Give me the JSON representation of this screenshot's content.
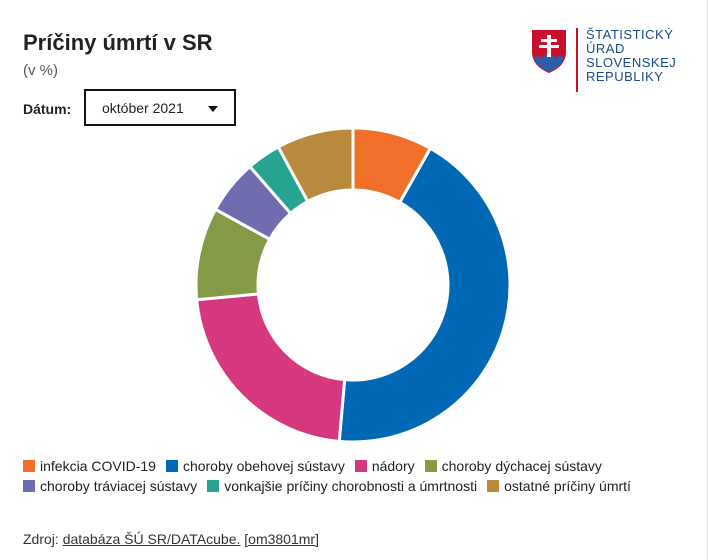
{
  "header": {
    "title": "Príčiny úmrtí v SR",
    "subtitle": "(v %)"
  },
  "filter": {
    "label": "Dátum:",
    "selected": "október 2021"
  },
  "logo": {
    "lines": [
      "ŠTATISTICKÝ",
      "ÚRAD",
      "SLOVENSKEJ",
      "REPUBLIKY"
    ]
  },
  "chart_data": {
    "type": "pie",
    "donut": true,
    "title": "Príčiny úmrtí v SR",
    "subtitle": "(v %)",
    "legend_position": "bottom",
    "categories": [
      "infekcia COVID-19",
      "choroby obehovej sústavy",
      "nádory",
      "choroby dýchacej sústavy",
      "choroby tráviacej sústavy",
      "vonkajšie príčiny chorobnosti a úmrtnosti",
      "ostatné príčiny úmrtí"
    ],
    "values": [
      8.2,
      43.2,
      22.1,
      9.5,
      5.6,
      3.5,
      7.9
    ],
    "colors": [
      "#f07029",
      "#0068b4",
      "#d6387f",
      "#859a46",
      "#6f6db0",
      "#27a392",
      "#b98a3e"
    ]
  },
  "source": {
    "prefix": "Zdroj: ",
    "link": "databáza ŠÚ SR/DATAcube.",
    "code": "[om3801mr]"
  }
}
